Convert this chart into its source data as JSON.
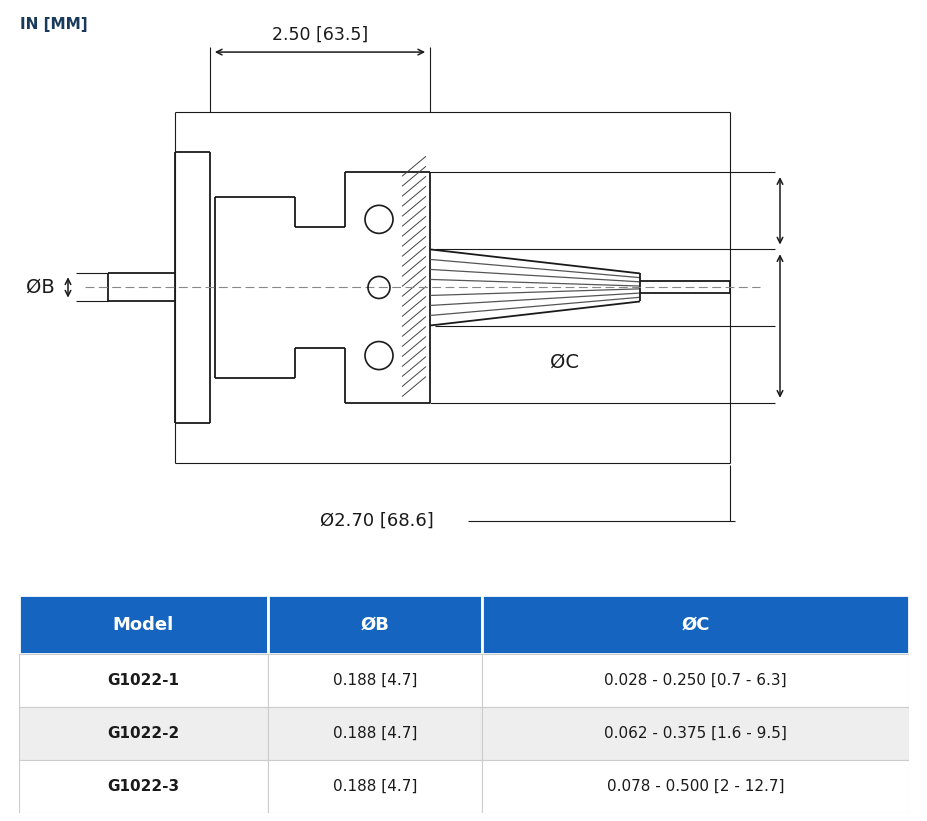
{
  "title_unit": "IN [MM]",
  "dim_width_label": "2.50 [63.5]",
  "dim_diameter_label": "Ø2.70 [68.6]",
  "dim_B_label": "ØB",
  "dim_C_label": "ØC",
  "table_header_color": "#1565C0",
  "table_header_text_color": "#FFFFFF",
  "table_row_colors": [
    "#FFFFFF",
    "#EEEEEE",
    "#FFFFFF"
  ],
  "table_col_headers": [
    "Model",
    "ØB",
    "ØC"
  ],
  "table_rows": [
    [
      "G1022-1",
      "0.188 [4.7]",
      "0.028 - 0.250 [0.7 - 6.3]"
    ],
    [
      "G1022-2",
      "0.188 [4.7]",
      "0.062 - 0.375 [1.6 - 9.5]"
    ],
    [
      "G1022-3",
      "0.188 [4.7]",
      "0.078 - 0.500 [2 - 12.7]"
    ]
  ],
  "bg_color": "#FFFFFF",
  "line_color": "#1a1a1a",
  "dim_line_color": "#1a1a1a",
  "text_color": "#1a1a1a",
  "centerline_color": "#888888"
}
